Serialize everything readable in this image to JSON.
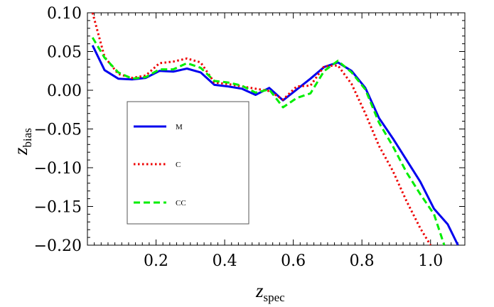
{
  "chart_data": {
    "type": "line",
    "xlabel_main": "z",
    "xlabel_sub": "spec",
    "ylabel_main": "z",
    "ylabel_sub": "bias",
    "xlim": [
      0.0,
      1.1
    ],
    "ylim": [
      -0.2,
      0.1
    ],
    "x_ticks": [
      0.2,
      0.4,
      0.6,
      0.8,
      1.0
    ],
    "x_tick_labels": [
      "0.2",
      "0.4",
      "0.6",
      "0.8",
      "1.0"
    ],
    "y_ticks": [
      0.1,
      0.05,
      0.0,
      -0.05,
      -0.1,
      -0.15,
      -0.2
    ],
    "y_tick_labels": [
      "0.10",
      "0.05",
      "0.00",
      "−0.05",
      "−0.10",
      "−0.15",
      "−0.20"
    ],
    "grid": false,
    "legend_position": "center-left",
    "series": [
      {
        "name": "M",
        "color": "#0000ee",
        "dash": "solid",
        "x": [
          0.015,
          0.05,
          0.09,
          0.13,
          0.17,
          0.21,
          0.25,
          0.29,
          0.33,
          0.37,
          0.41,
          0.45,
          0.49,
          0.53,
          0.57,
          0.61,
          0.65,
          0.69,
          0.73,
          0.77,
          0.81,
          0.85,
          0.89,
          0.93,
          0.97,
          1.01,
          1.05,
          1.08
        ],
        "values": [
          0.058,
          0.026,
          0.015,
          0.014,
          0.016,
          0.025,
          0.024,
          0.028,
          0.023,
          0.007,
          0.005,
          0.002,
          -0.006,
          0.003,
          -0.013,
          0.001,
          0.015,
          0.03,
          0.036,
          0.025,
          0.003,
          -0.036,
          -0.062,
          -0.09,
          -0.118,
          -0.153,
          -0.173,
          -0.2
        ]
      },
      {
        "name": "C",
        "color": "#ee0000",
        "dash": "dotted",
        "x": [
          0.015,
          0.05,
          0.09,
          0.13,
          0.17,
          0.21,
          0.25,
          0.29,
          0.33,
          0.37,
          0.41,
          0.45,
          0.49,
          0.53,
          0.57,
          0.61,
          0.65,
          0.69,
          0.73,
          0.77,
          0.81,
          0.85,
          0.89,
          0.93,
          0.97,
          1.0
        ],
        "values": [
          0.1,
          0.043,
          0.021,
          0.016,
          0.019,
          0.035,
          0.037,
          0.041,
          0.036,
          0.01,
          0.008,
          0.005,
          0.002,
          -0.001,
          -0.012,
          0.005,
          0.006,
          0.031,
          0.032,
          0.008,
          -0.03,
          -0.072,
          -0.104,
          -0.143,
          -0.178,
          -0.2
        ]
      },
      {
        "name": "CC",
        "color": "#00ee00",
        "dash": "dashed",
        "x": [
          0.015,
          0.05,
          0.09,
          0.13,
          0.17,
          0.21,
          0.25,
          0.29,
          0.33,
          0.37,
          0.41,
          0.45,
          0.49,
          0.53,
          0.57,
          0.61,
          0.65,
          0.69,
          0.73,
          0.77,
          0.81,
          0.85,
          0.89,
          0.93,
          0.97,
          1.01,
          1.04
        ],
        "values": [
          0.068,
          0.042,
          0.023,
          0.015,
          0.017,
          0.027,
          0.027,
          0.035,
          0.029,
          0.012,
          0.01,
          0.006,
          -0.003,
          0.001,
          -0.022,
          -0.01,
          -0.004,
          0.025,
          0.038,
          0.023,
          0.001,
          -0.042,
          -0.072,
          -0.106,
          -0.134,
          -0.16,
          -0.2
        ]
      }
    ]
  }
}
